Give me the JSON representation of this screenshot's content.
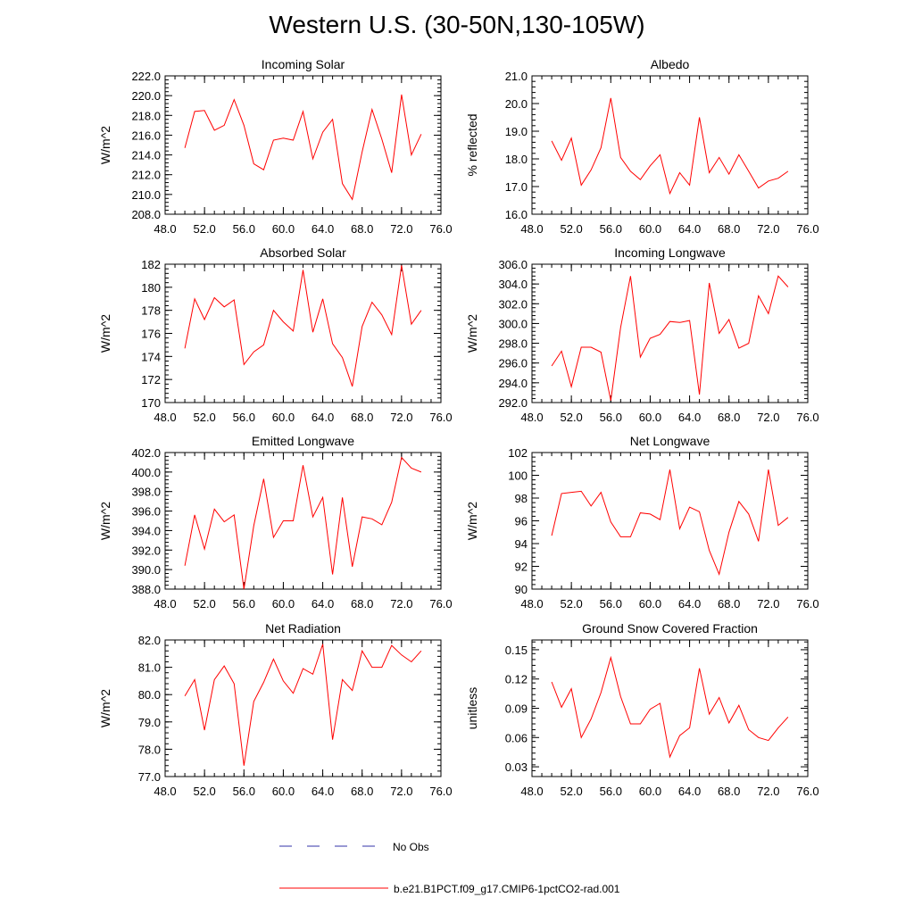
{
  "page": {
    "title": "Western U.S. (30-50N,130-105W)"
  },
  "legend": {
    "entries": [
      {
        "label": "No Obs",
        "color": "#3333aa",
        "style": "dashed"
      },
      {
        "label": "b.e21.B1PCT.f09_g17.CMIP6-1pctCO2-rad.001",
        "color": "#ff0000",
        "style": "solid"
      }
    ]
  },
  "chart_data": [
    {
      "type": "line",
      "title": "Incoming Solar",
      "xlabel": "",
      "ylabel": "W/m^2",
      "xlim": [
        48,
        76
      ],
      "ylim": [
        208,
        222
      ],
      "xticks": [
        48,
        52,
        56,
        60,
        64,
        68,
        72,
        76
      ],
      "xtick_labels": [
        "48.0",
        "52.0",
        "56.0",
        "60.0",
        "64.0",
        "68.0",
        "72.0",
        "76.0"
      ],
      "yticks": [
        208,
        210,
        212,
        214,
        216,
        218,
        220,
        222
      ],
      "ytick_labels": [
        "208.0",
        "210.0",
        "212.0",
        "214.0",
        "216.0",
        "218.0",
        "220.0",
        "222.0"
      ],
      "grid": false,
      "color": "#ff0000",
      "x": [
        50,
        51,
        52,
        53,
        54,
        55,
        56,
        57,
        58,
        59,
        60,
        61,
        62,
        63,
        64,
        65,
        66,
        67,
        68,
        69,
        70,
        71,
        72,
        73,
        74
      ],
      "y": [
        214.7,
        218.4,
        218.5,
        216.5,
        217.0,
        219.6,
        217.0,
        213.1,
        212.5,
        215.5,
        215.7,
        215.5,
        218.4,
        213.6,
        216.3,
        217.6,
        211.1,
        209.5,
        214.3,
        218.6,
        215.6,
        212.2,
        220.1,
        214.0,
        216.1
      ]
    },
    {
      "type": "line",
      "title": "Albedo",
      "xlabel": "",
      "ylabel": "% reflected",
      "xlim": [
        48,
        76
      ],
      "ylim": [
        16,
        21
      ],
      "xticks": [
        48,
        52,
        56,
        60,
        64,
        68,
        72,
        76
      ],
      "xtick_labels": [
        "48.0",
        "52.0",
        "56.0",
        "60.0",
        "64.0",
        "68.0",
        "72.0",
        "76.0"
      ],
      "yticks": [
        16,
        17,
        18,
        19,
        20,
        21
      ],
      "ytick_labels": [
        "16.0",
        "17.0",
        "18.0",
        "19.0",
        "20.0",
        "21.0"
      ],
      "grid": false,
      "color": "#ff0000",
      "x": [
        50,
        51,
        52,
        53,
        54,
        55,
        56,
        57,
        58,
        59,
        60,
        61,
        62,
        63,
        64,
        65,
        66,
        67,
        68,
        69,
        70,
        71,
        72,
        73,
        74
      ],
      "y": [
        18.65,
        17.95,
        18.75,
        17.05,
        17.6,
        18.4,
        20.2,
        18.05,
        17.55,
        17.25,
        17.75,
        18.15,
        16.75,
        17.5,
        17.05,
        19.5,
        17.5,
        18.05,
        17.45,
        18.15,
        17.55,
        16.95,
        17.2,
        17.3,
        17.55
      ]
    },
    {
      "type": "line",
      "title": "Absorbed Solar",
      "xlabel": "",
      "ylabel": "W/m^2",
      "xlim": [
        48,
        76
      ],
      "ylim": [
        170,
        182
      ],
      "xticks": [
        48,
        52,
        56,
        60,
        64,
        68,
        72,
        76
      ],
      "xtick_labels": [
        "48.0",
        "52.0",
        "56.0",
        "60.0",
        "64.0",
        "68.0",
        "72.0",
        "76.0"
      ],
      "yticks": [
        170,
        172,
        174,
        176,
        178,
        180,
        182
      ],
      "ytick_labels": [
        "170",
        "172",
        "174",
        "176",
        "178",
        "180",
        "182"
      ],
      "grid": false,
      "color": "#ff0000",
      "x": [
        50,
        51,
        52,
        53,
        54,
        55,
        56,
        57,
        58,
        59,
        60,
        61,
        62,
        63,
        64,
        65,
        66,
        67,
        68,
        69,
        70,
        71,
        72,
        73,
        74
      ],
      "y": [
        174.7,
        179.0,
        177.2,
        179.1,
        178.3,
        178.9,
        173.3,
        174.4,
        175.0,
        178.0,
        177.0,
        176.2,
        181.5,
        176.1,
        179.0,
        175.1,
        173.9,
        171.4,
        176.6,
        178.7,
        177.6,
        175.9,
        181.9,
        176.8,
        178.0
      ]
    },
    {
      "type": "line",
      "title": "Incoming Longwave",
      "xlabel": "",
      "ylabel": "W/m^2",
      "xlim": [
        48,
        76
      ],
      "ylim": [
        292,
        306
      ],
      "xticks": [
        48,
        52,
        56,
        60,
        64,
        68,
        72,
        76
      ],
      "xtick_labels": [
        "48.0",
        "52.0",
        "56.0",
        "60.0",
        "64.0",
        "68.0",
        "72.0",
        "76.0"
      ],
      "yticks": [
        292,
        294,
        296,
        298,
        300,
        302,
        304,
        306
      ],
      "ytick_labels": [
        "292.0",
        "294.0",
        "296.0",
        "298.0",
        "300.0",
        "302.0",
        "304.0",
        "306.0"
      ],
      "grid": false,
      "color": "#ff0000",
      "x": [
        50,
        51,
        52,
        53,
        54,
        55,
        56,
        57,
        58,
        59,
        60,
        61,
        62,
        63,
        64,
        65,
        66,
        67,
        68,
        69,
        70,
        71,
        72,
        73,
        74
      ],
      "y": [
        295.7,
        297.2,
        293.6,
        297.6,
        297.6,
        297.1,
        292.2,
        299.6,
        304.8,
        296.6,
        298.5,
        298.9,
        300.2,
        300.1,
        300.3,
        292.8,
        304.1,
        299.0,
        300.4,
        297.5,
        298.0,
        302.8,
        301.0,
        304.8,
        303.7
      ]
    },
    {
      "type": "line",
      "title": "Emitted Longwave",
      "xlabel": "",
      "ylabel": "W/m^2",
      "xlim": [
        48,
        76
      ],
      "ylim": [
        388,
        402
      ],
      "xticks": [
        48,
        52,
        56,
        60,
        64,
        68,
        72,
        76
      ],
      "xtick_labels": [
        "48.0",
        "52.0",
        "56.0",
        "60.0",
        "64.0",
        "68.0",
        "72.0",
        "76.0"
      ],
      "yticks": [
        388,
        390,
        392,
        394,
        396,
        398,
        400,
        402
      ],
      "ytick_labels": [
        "388.0",
        "390.0",
        "392.0",
        "394.0",
        "396.0",
        "398.0",
        "400.0",
        "402.0"
      ],
      "grid": false,
      "color": "#ff0000",
      "x": [
        50,
        51,
        52,
        53,
        54,
        55,
        56,
        57,
        58,
        59,
        60,
        61,
        62,
        63,
        64,
        65,
        66,
        67,
        68,
        69,
        70,
        71,
        72,
        73,
        74
      ],
      "y": [
        390.4,
        395.6,
        392.1,
        396.2,
        394.9,
        395.6,
        388.0,
        394.5,
        399.3,
        393.3,
        395.0,
        395.0,
        400.7,
        395.4,
        397.4,
        389.5,
        397.4,
        390.3,
        395.4,
        395.2,
        394.6,
        396.9,
        401.5,
        400.4,
        400.0
      ]
    },
    {
      "type": "line",
      "title": "Net Longwave",
      "xlabel": "",
      "ylabel": "W/m^2",
      "xlim": [
        48,
        76
      ],
      "ylim": [
        90,
        102
      ],
      "xticks": [
        48,
        52,
        56,
        60,
        64,
        68,
        72,
        76
      ],
      "xtick_labels": [
        "48.0",
        "52.0",
        "56.0",
        "60.0",
        "64.0",
        "68.0",
        "72.0",
        "76.0"
      ],
      "yticks": [
        90,
        92,
        94,
        96,
        98,
        100,
        102
      ],
      "ytick_labels": [
        "90",
        "92",
        "94",
        "96",
        "98",
        "100",
        "102"
      ],
      "grid": false,
      "color": "#ff0000",
      "x": [
        50,
        51,
        52,
        53,
        54,
        55,
        56,
        57,
        58,
        59,
        60,
        61,
        62,
        63,
        64,
        65,
        66,
        67,
        68,
        69,
        70,
        71,
        72,
        73,
        74
      ],
      "y": [
        94.7,
        98.4,
        98.5,
        98.6,
        97.3,
        98.5,
        95.9,
        94.6,
        94.6,
        96.7,
        96.6,
        96.1,
        100.5,
        95.3,
        97.2,
        96.8,
        93.4,
        91.3,
        95.0,
        97.7,
        96.6,
        94.2,
        100.5,
        95.6,
        96.3
      ]
    },
    {
      "type": "line",
      "title": "Net Radiation",
      "xlabel": "",
      "ylabel": "W/m^2",
      "xlim": [
        48,
        76
      ],
      "ylim": [
        77,
        82
      ],
      "xticks": [
        48,
        52,
        56,
        60,
        64,
        68,
        72,
        76
      ],
      "xtick_labels": [
        "48.0",
        "52.0",
        "56.0",
        "60.0",
        "64.0",
        "68.0",
        "72.0",
        "76.0"
      ],
      "yticks": [
        77,
        78,
        79,
        80,
        81,
        82
      ],
      "ytick_labels": [
        "77.0",
        "78.0",
        "79.0",
        "80.0",
        "81.0",
        "82.0"
      ],
      "grid": false,
      "color": "#ff0000",
      "x": [
        50,
        51,
        52,
        53,
        54,
        55,
        56,
        57,
        58,
        59,
        60,
        61,
        62,
        63,
        64,
        65,
        66,
        67,
        68,
        69,
        70,
        71,
        72,
        73,
        74
      ],
      "y": [
        79.95,
        80.55,
        78.7,
        80.55,
        81.05,
        80.4,
        77.4,
        79.75,
        80.45,
        81.3,
        80.5,
        80.05,
        80.95,
        80.75,
        81.85,
        78.35,
        80.55,
        80.15,
        81.6,
        81.0,
        81.0,
        81.8,
        81.45,
        81.2,
        81.6
      ]
    },
    {
      "type": "line",
      "title": "Ground Snow Covered Fraction",
      "xlabel": "",
      "ylabel": "unitless",
      "xlim": [
        48,
        76
      ],
      "ylim": [
        0.02,
        0.16
      ],
      "xticks": [
        48,
        52,
        56,
        60,
        64,
        68,
        72,
        76
      ],
      "xtick_labels": [
        "48.0",
        "52.0",
        "56.0",
        "60.0",
        "64.0",
        "68.0",
        "72.0",
        "76.0"
      ],
      "yticks": [
        0.03,
        0.06,
        0.09,
        0.12,
        0.15
      ],
      "ytick_labels": [
        "0.03",
        "0.06",
        "0.09",
        "0.12",
        "0.15"
      ],
      "grid": false,
      "color": "#ff0000",
      "x": [
        50,
        51,
        52,
        53,
        54,
        55,
        56,
        57,
        58,
        59,
        60,
        61,
        62,
        63,
        64,
        65,
        66,
        67,
        68,
        69,
        70,
        71,
        72,
        73,
        74
      ],
      "y": [
        0.117,
        0.091,
        0.11,
        0.06,
        0.079,
        0.106,
        0.142,
        0.102,
        0.074,
        0.074,
        0.089,
        0.095,
        0.04,
        0.062,
        0.07,
        0.131,
        0.084,
        0.101,
        0.075,
        0.093,
        0.068,
        0.06,
        0.057,
        0.07,
        0.081
      ]
    }
  ]
}
